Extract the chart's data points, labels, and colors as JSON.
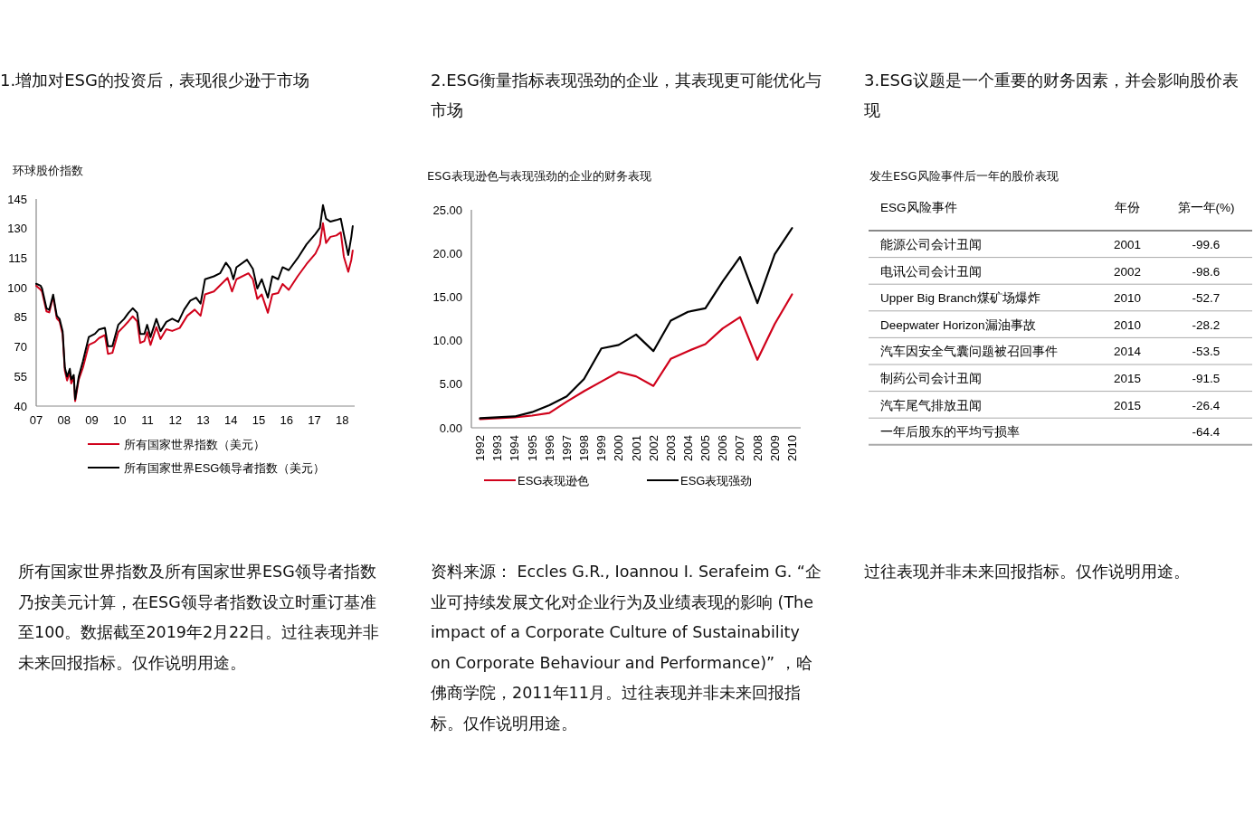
{
  "chart_data": [
    {
      "type": "line",
      "title": "1.增加对ESG的投资后，表现很少逊于市场",
      "subtitle": "环球股价指数",
      "xlim": [
        2007,
        2018.45
      ],
      "ylim": [
        40,
        145
      ],
      "xticks": [
        {
          "value": 2007,
          "label": "07"
        },
        {
          "value": 2008,
          "label": "08"
        },
        {
          "value": 2009,
          "label": "09"
        },
        {
          "value": 2010,
          "label": "10"
        },
        {
          "value": 2011,
          "label": "11"
        },
        {
          "value": 2012,
          "label": "12"
        },
        {
          "value": 2013,
          "label": "13"
        },
        {
          "value": 2014,
          "label": "14"
        },
        {
          "value": 2015,
          "label": "15"
        },
        {
          "value": 2016,
          "label": "16"
        },
        {
          "value": 2017,
          "label": "17"
        },
        {
          "value": 2018,
          "label": "18"
        }
      ],
      "yticks": [
        40,
        55,
        70,
        85,
        100,
        115,
        130,
        145
      ],
      "legend": "bottom",
      "grid": false,
      "series": [
        {
          "name": "所有国家世界指数（美元）",
          "color": "#d0021b",
          "x": [
            2007.0,
            2007.16,
            2007.21,
            2007.37,
            2007.47,
            2007.61,
            2007.74,
            2007.84,
            2007.95,
            2008.03,
            2008.11,
            2008.21,
            2008.26,
            2008.35,
            2008.4,
            2008.53,
            2008.68,
            2008.89,
            2009.11,
            2009.26,
            2009.47,
            2009.58,
            2009.74,
            2009.95,
            2010.16,
            2010.32,
            2010.47,
            2010.63,
            2010.74,
            2010.89,
            2010.99,
            2011.11,
            2011.32,
            2011.47,
            2011.68,
            2011.89,
            2012.16,
            2012.43,
            2012.7,
            2012.91,
            2013.07,
            2013.39,
            2013.61,
            2013.88,
            2014.04,
            2014.2,
            2014.63,
            2014.79,
            2014.95,
            2015.11,
            2015.33,
            2015.49,
            2015.7,
            2015.86,
            2016.08,
            2016.4,
            2016.72,
            2017.04,
            2017.2,
            2017.31,
            2017.42,
            2017.58,
            2017.79,
            2017.95,
            2018.06,
            2018.22,
            2018.33,
            2018.38
          ],
          "values": [
            101,
            99,
            98,
            88,
            87.5,
            95.5,
            84.5,
            83,
            76.5,
            58,
            53,
            57,
            51.5,
            54.5,
            42.5,
            53.5,
            59.5,
            71,
            72.5,
            74.5,
            76,
            66.5,
            67,
            77.5,
            80.5,
            83,
            85.5,
            83,
            72,
            73,
            77.5,
            71,
            80,
            74,
            79,
            78.1,
            79.6,
            85.8,
            88.9,
            85.8,
            96.6,
            98.1,
            101.2,
            105,
            98.1,
            104.3,
            107.3,
            104.3,
            94.3,
            96.6,
            87.3,
            96.6,
            97.3,
            101.9,
            98.9,
            105.8,
            112,
            117.3,
            122,
            132.7,
            122.7,
            125.8,
            126.5,
            128.1,
            115.8,
            108.1,
            114.2,
            118.9
          ]
        },
        {
          "name": "所有国家世界ESG领导者指数（美元）",
          "color": "#000000",
          "x": [
            2007.0,
            2007.16,
            2007.21,
            2007.37,
            2007.47,
            2007.61,
            2007.74,
            2007.84,
            2007.95,
            2008.03,
            2008.11,
            2008.21,
            2008.26,
            2008.35,
            2008.4,
            2008.53,
            2008.68,
            2008.89,
            2009.11,
            2009.26,
            2009.47,
            2009.58,
            2009.74,
            2009.95,
            2010.16,
            2010.32,
            2010.47,
            2010.63,
            2010.74,
            2010.89,
            2010.99,
            2011.11,
            2011.32,
            2011.47,
            2011.68,
            2011.89,
            2012.11,
            2012.32,
            2012.54,
            2012.75,
            2012.91,
            2013.07,
            2013.39,
            2013.61,
            2013.82,
            2013.98,
            2014.09,
            2014.2,
            2014.58,
            2014.79,
            2014.95,
            2015.11,
            2015.33,
            2015.49,
            2015.7,
            2015.86,
            2016.08,
            2016.4,
            2016.72,
            2017.04,
            2017.2,
            2017.31,
            2017.42,
            2017.58,
            2017.79,
            2017.95,
            2018.06,
            2018.22,
            2018.33,
            2018.38
          ],
          "values": [
            102,
            101,
            99.6,
            89.6,
            88.8,
            96.5,
            85.8,
            84.2,
            78,
            59.6,
            55,
            58.9,
            53.5,
            55.8,
            43.5,
            55,
            62.7,
            75,
            76.6,
            78.9,
            79.7,
            70.4,
            70.4,
            81.2,
            84.2,
            87.3,
            89.6,
            87.3,
            76.6,
            76.6,
            81.2,
            75,
            84.2,
            78,
            82.7,
            84.3,
            82.7,
            88.9,
            93.5,
            95,
            92,
            104.3,
            105.8,
            107.3,
            112.7,
            109.6,
            104.3,
            110.4,
            114.2,
            109.6,
            99.6,
            104.3,
            95,
            105.8,
            104.3,
            110.4,
            108.9,
            115,
            122,
            127.3,
            130.4,
            141.9,
            135,
            133.5,
            134.3,
            135,
            127.3,
            116.6,
            125.8,
            131.2
          ]
        }
      ],
      "annotations": [
        "所有国家世界指数及所有国家世界ESG领导者指数乃按美元计算，在ESG领导者指数设立时重订基准至100。数据截至2019年2月22日。过往表现并非未来回报指标。仅作说明用途。"
      ]
    },
    {
      "type": "line",
      "title": "2.ESG衡量指标表现强劲的企业，其表现更可能优化与市场",
      "subtitle": "ESG表现逊色与表现强劲的企业的财务表现",
      "ylim": [
        0,
        25
      ],
      "yticks": [
        {
          "value": 0,
          "label": "0.00"
        },
        {
          "value": 5,
          "label": "5.00"
        },
        {
          "value": 10,
          "label": "10.00"
        },
        {
          "value": 15,
          "label": "15.00"
        },
        {
          "value": 20,
          "label": "20.00"
        },
        {
          "value": 25,
          "label": "25.00"
        }
      ],
      "categories": [
        "1992",
        "1993",
        "1994",
        "1995",
        "1996",
        "1997",
        "1998",
        "1999",
        "2000",
        "2001",
        "2002",
        "2003",
        "2004",
        "2005",
        "2006",
        "2007",
        "2008",
        "2009",
        "2010"
      ],
      "legend": "bottom",
      "grid": false,
      "series": [
        {
          "name": "ESG表现逊色",
          "color": "#d0021b",
          "values": [
            1.0,
            1.1,
            1.2,
            1.4,
            1.7,
            3.0,
            4.2,
            5.3,
            6.4,
            5.9,
            4.8,
            7.9,
            8.8,
            9.6,
            11.4,
            12.7,
            7.8,
            11.9,
            15.3
          ]
        },
        {
          "name": "ESG表现强劲",
          "color": "#000000",
          "values": [
            1.1,
            1.2,
            1.3,
            1.8,
            2.6,
            3.6,
            5.6,
            9.1,
            9.5,
            10.7,
            8.8,
            12.3,
            13.3,
            13.7,
            16.8,
            19.6,
            14.3,
            19.9,
            22.9
          ]
        }
      ],
      "annotations": [
        "资料来源： Eccles G.R., Ioannou I. Serafeim G. “企业可持续发展文化对企业行为及业绩表现的影响 (The impact of a Corporate Culture of Sustainability on Corporate Behaviour and Performance)” ，哈佛商学院，2011年11月。过往表现并非未来回报指标。仅作说明用途。"
      ]
    },
    {
      "type": "other",
      "title": "3.ESG议题是一个重要的财务因素，并会影响股价表现",
      "subtitle": "发生ESG风险事件后一年的股价表现",
      "categories": [
        "ESG风险事件",
        "年份",
        "第一年(%)"
      ],
      "y_categories": [
        "能源公司会计丑闻",
        "电讯公司会计丑闻",
        "Upper Big Branch煤矿场爆炸",
        "Deepwater Horizon漏油事故",
        "汽车因安全气囊问题被召回事件",
        "制药公司会计丑闻",
        "汽车尾气排放丑闻",
        "一年后股东的平均亏损率"
      ],
      "cell_labels": [
        [
          "2001",
          "-99.6"
        ],
        [
          "2002",
          "-98.6"
        ],
        [
          "2010",
          "-52.7"
        ],
        [
          "2010",
          "-28.2"
        ],
        [
          "2014",
          "-53.5"
        ],
        [
          "2015",
          "-91.5"
        ],
        [
          "2015",
          "-26.4"
        ],
        [
          null,
          "-64.4"
        ]
      ],
      "annotations": [
        "过往表现并非未来回报指标。仅作说明用途。"
      ]
    }
  ]
}
